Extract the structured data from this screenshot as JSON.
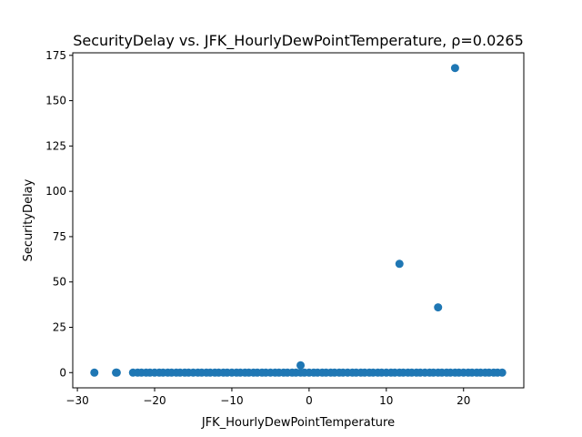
{
  "chart_data": {
    "type": "scatter",
    "title": "SecurityDelay vs. JFK_HourlyDewPointTemperature, ρ=0.0265",
    "xlabel": "JFK_HourlyDewPointTemperature",
    "ylabel": "SecurityDelay",
    "xlim": [
      -30.6,
      27.8
    ],
    "ylim": [
      -8.4,
      176.4
    ],
    "xticks": [
      -30,
      -20,
      -10,
      0,
      10,
      20
    ],
    "xtick_labels": [
      "−30",
      "−20",
      "−10",
      "0",
      "10",
      "20"
    ],
    "yticks": [
      0,
      25,
      50,
      75,
      100,
      125,
      150,
      175
    ],
    "ytick_labels": [
      "0",
      "25",
      "50",
      "75",
      "100",
      "125",
      "150",
      "175"
    ],
    "grid": false,
    "legend": "none",
    "color": "#1f77b4",
    "series": [
      {
        "x": [
          -27.8,
          -25.0,
          -24.9,
          -22.8,
          -22.2,
          -21.7,
          -21.1,
          -20.6,
          -20.0,
          -19.4,
          -18.9,
          -18.3,
          -17.8,
          -17.2,
          -16.7,
          -16.1,
          -15.6,
          -15.0,
          -14.4,
          -13.9,
          -13.3,
          -12.8,
          -12.2,
          -11.7,
          -11.1,
          -10.6,
          -10.0,
          -9.4,
          -8.9,
          -8.3,
          -7.8,
          -7.2,
          -6.7,
          -6.1,
          -5.6,
          -5.0,
          -4.4,
          -3.9,
          -3.3,
          -2.8,
          -2.2,
          -1.7,
          -1.1,
          -0.6,
          0.0,
          0.6,
          1.1,
          1.7,
          2.2,
          2.8,
          3.3,
          3.9,
          4.4,
          5.0,
          5.6,
          6.1,
          6.7,
          7.2,
          7.8,
          8.3,
          8.9,
          9.4,
          10.0,
          10.6,
          11.1,
          11.7,
          12.2,
          12.8,
          13.3,
          13.9,
          14.4,
          15.0,
          15.6,
          16.1,
          16.7,
          17.2,
          17.8,
          18.3,
          18.9,
          19.4,
          20.0,
          20.6,
          21.1,
          21.7,
          22.2,
          22.8,
          23.3,
          23.9,
          24.4,
          25.0,
          -1.1,
          11.7,
          16.7,
          18.9
        ],
        "y": [
          0,
          0,
          0,
          0,
          0,
          0,
          0,
          0,
          0,
          0,
          0,
          0,
          0,
          0,
          0,
          0,
          0,
          0,
          0,
          0,
          0,
          0,
          0,
          0,
          0,
          0,
          0,
          0,
          0,
          0,
          0,
          0,
          0,
          0,
          0,
          0,
          0,
          0,
          0,
          0,
          0,
          0,
          0,
          0,
          0,
          0,
          0,
          0,
          0,
          0,
          0,
          0,
          0,
          0,
          0,
          0,
          0,
          0,
          0,
          0,
          0,
          0,
          0,
          0,
          0,
          0,
          0,
          0,
          0,
          0,
          0,
          0,
          0,
          0,
          0,
          0,
          0,
          0,
          0,
          0,
          0,
          0,
          0,
          0,
          0,
          0,
          0,
          0,
          0,
          0,
          4,
          60,
          36,
          168
        ]
      }
    ]
  }
}
